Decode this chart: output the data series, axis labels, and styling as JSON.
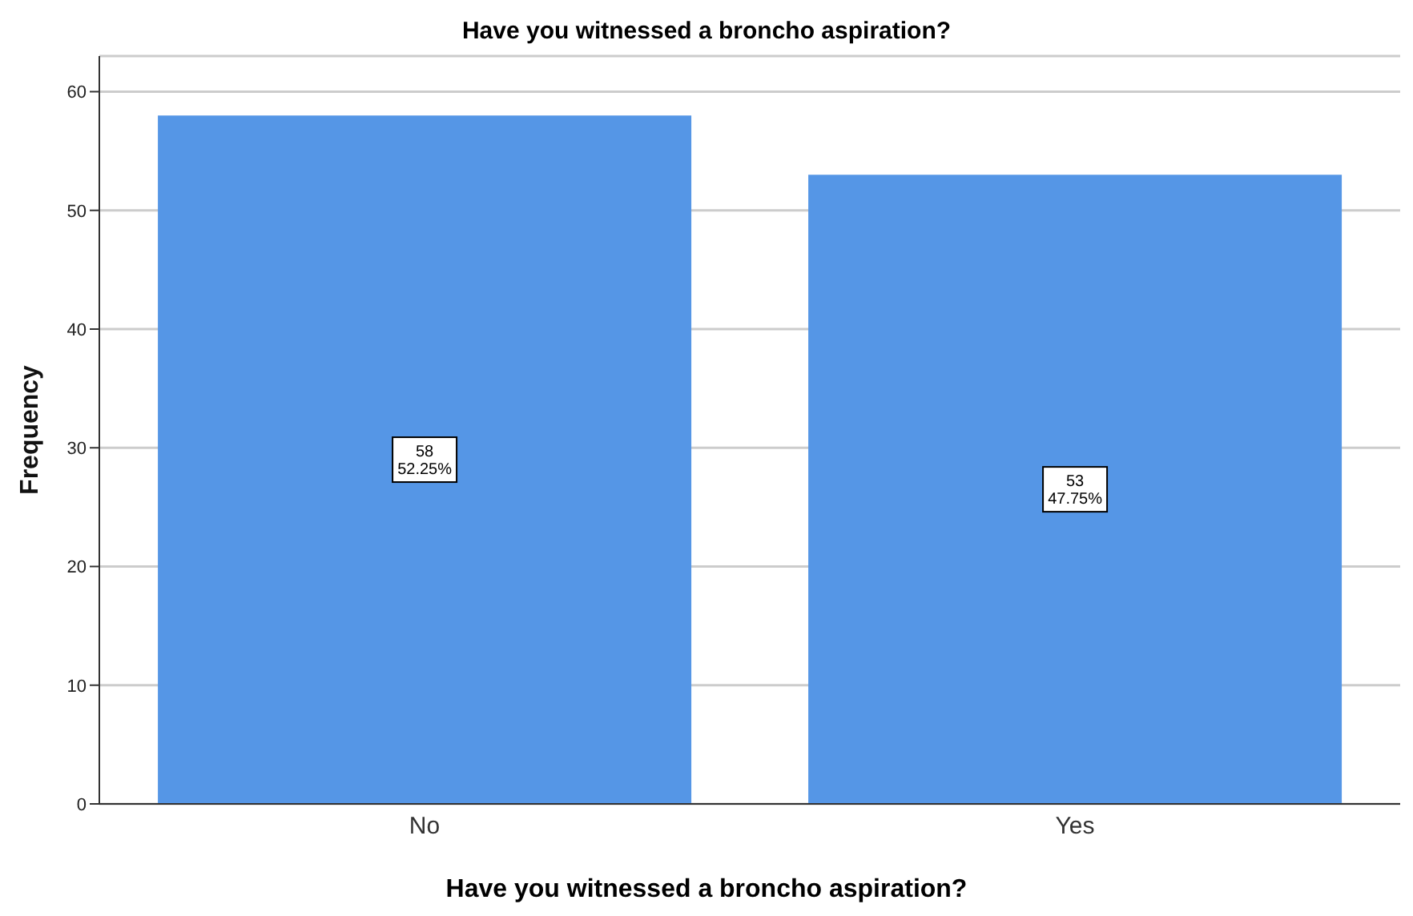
{
  "chart_data": {
    "type": "bar",
    "title": "Have you witnessed a broncho aspiration?",
    "xlabel": "Have you witnessed a broncho aspiration?",
    "ylabel": "Frequency",
    "categories": [
      "No",
      "Yes"
    ],
    "values": [
      58,
      53
    ],
    "value_labels": [
      "58\n52.25%",
      "53\n47.75%"
    ],
    "color": "#5596e6",
    "ylim": [
      0,
      63
    ],
    "yticks": [
      0,
      10,
      20,
      30,
      40,
      50,
      60
    ],
    "grid": "y",
    "legend": false
  }
}
